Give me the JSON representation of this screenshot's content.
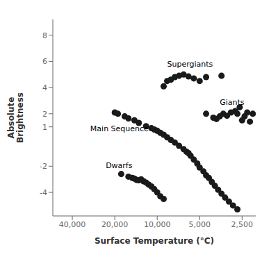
{
  "chart_data": {
    "type": "scatter",
    "xlabel": "Surface Temperature (°C)",
    "ylabel": "Absolute\nBrightness",
    "log": "x",
    "grid": false,
    "xlim": [
      55000,
      2000
    ],
    "ylim": [
      -5.8,
      9.2
    ],
    "xticks": [
      {
        "value": 40000,
        "label": "40,000"
      },
      {
        "value": 20000,
        "label": "20,000"
      },
      {
        "value": 10000,
        "label": "10,000"
      },
      {
        "value": 5000,
        "label": "5,000"
      },
      {
        "value": 2500,
        "label": "2,500"
      }
    ],
    "yticks": [
      -4,
      -2,
      1,
      2,
      4,
      6,
      8
    ],
    "series": [
      {
        "color": "#1a1a1a",
        "x": [
          20000,
          19000,
          17000,
          16000,
          14500,
          13500,
          12000,
          11000,
          10500,
          10000,
          9500,
          9000,
          8500,
          8000,
          7500,
          7000,
          6500,
          6200,
          6000,
          5800,
          5500,
          5200,
          5000,
          4700,
          4500,
          4300,
          4100,
          3900,
          3700,
          3500,
          3300,
          3100,
          2900,
          2700
        ],
        "values": [
          2.1,
          2.0,
          1.8,
          1.65,
          1.5,
          1.3,
          1.05,
          0.9,
          0.8,
          0.7,
          0.55,
          0.4,
          0.2,
          0.0,
          -0.2,
          -0.45,
          -0.7,
          -0.9,
          -1.0,
          -1.2,
          -1.5,
          -1.8,
          -2.1,
          -2.4,
          -2.7,
          -2.9,
          -3.2,
          -3.5,
          -3.8,
          -4.1,
          -4.4,
          -4.7,
          -5.0,
          -5.3
        ]
      },
      {
        "color": "#1a1a1a",
        "x": [
          9000,
          8500,
          8000,
          7500,
          7000,
          6500,
          6000,
          5500,
          5000,
          4500,
          3500
        ],
        "values": [
          4.1,
          4.5,
          4.6,
          4.8,
          4.9,
          5.0,
          4.85,
          4.7,
          4.5,
          4.8,
          4.9
        ]
      },
      {
        "color": "#1a1a1a",
        "x": [
          4500,
          4000,
          3800,
          3600,
          3400,
          3200,
          3000,
          2800,
          2700,
          2600,
          2500,
          2400,
          2300,
          2200,
          2100
        ],
        "values": [
          2.0,
          1.7,
          1.6,
          1.8,
          2.0,
          1.85,
          2.1,
          2.2,
          2.0,
          2.5,
          1.5,
          1.8,
          2.1,
          1.4,
          2.0
        ]
      },
      {
        "color": "#1a1a1a",
        "x": [
          18000,
          16000,
          15000,
          14000,
          13000,
          12500,
          12000,
          11500,
          11000,
          10500,
          10000,
          9500,
          9000,
          14500,
          13500
        ],
        "values": [
          -2.6,
          -2.8,
          -2.9,
          -3.05,
          -3.0,
          -3.15,
          -3.25,
          -3.4,
          -3.55,
          -3.75,
          -4.0,
          -4.3,
          -4.5,
          -2.95,
          -3.08
        ]
      }
    ],
    "annotations": [
      {
        "text": "Supergiants",
        "x": 8500,
        "y": 5.5,
        "align": "left"
      },
      {
        "text": "Giants",
        "x": 3600,
        "y": 2.55,
        "align": "left"
      },
      {
        "text": "Main Sequence",
        "x": 11500,
        "y": 0.55,
        "align": "right"
      },
      {
        "text": "Dwarfs",
        "x": 15000,
        "y": -2.25,
        "align": "right"
      }
    ]
  }
}
